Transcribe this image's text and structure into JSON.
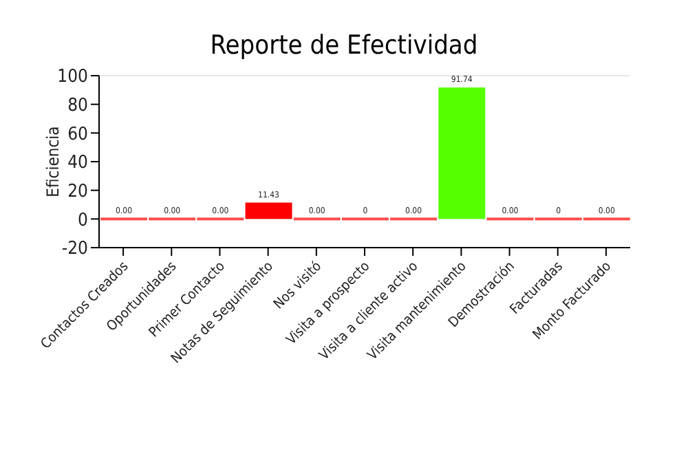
{
  "chart_data": {
    "type": "bar",
    "title": "Reporte de Efectividad",
    "ylabel": "Eficiencia",
    "categories": [
      "Contactos Creados",
      "Oportunidades",
      "Primer Contacto",
      "Notas de Seguimiento",
      "Nos visitó",
      "Visita a prospecto",
      "Visita a cliente activo",
      "Visita mantenimiento",
      "Demostración",
      "Facturadas",
      "Monto Facturado"
    ],
    "values": [
      0,
      0,
      0,
      11.43,
      0,
      0,
      0,
      91.74,
      0,
      0,
      0
    ],
    "colors": [
      "#ff0000",
      "#ff0000",
      "#ff0000",
      "#ff0000",
      "#ff0000",
      "#ff0000",
      "#ff0000",
      "#55ff00",
      "#ff0000",
      "#ff0000",
      "#ff0000"
    ],
    "value_labels": [
      "0.00",
      "0.00",
      "0.00",
      "11.43",
      "0.00",
      "0",
      "0.00",
      "91.74",
      "0.00",
      "0",
      "0.00"
    ],
    "ylim": [
      -20,
      100
    ],
    "yticks": [
      -20,
      0,
      20,
      40,
      60,
      80,
      100
    ]
  }
}
